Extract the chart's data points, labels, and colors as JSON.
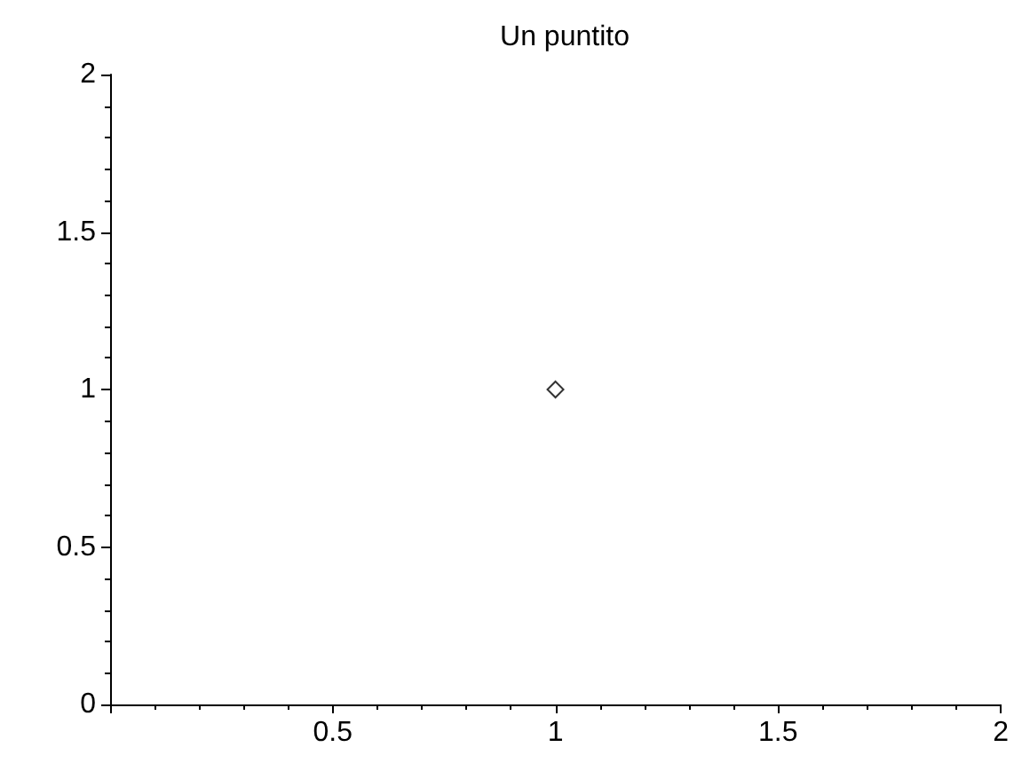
{
  "chart_data": {
    "type": "scatter",
    "title": "Un puntito",
    "x": [
      1
    ],
    "values": [
      1
    ],
    "color": "#000000",
    "marker": "diamond",
    "xlim": [
      0,
      2
    ],
    "xticks": [
      {
        "value": 0,
        "label": null
      },
      0.5,
      1,
      1.5,
      2
    ],
    "ylim": [
      0,
      2
    ],
    "yticks": [
      0,
      0.5,
      1,
      1.5,
      2
    ],
    "grid": false
  }
}
